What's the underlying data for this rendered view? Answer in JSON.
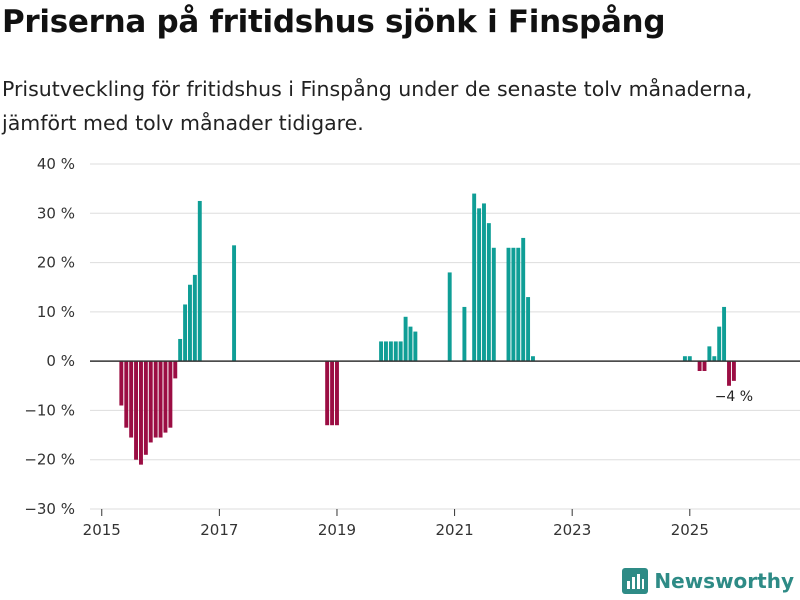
{
  "title": "Priserna på fritidshus sjönk i Finspång",
  "subtitle": "Prisutveckling för fritidshus i Finspång under de senaste tolv månaderna, jämfört med tolv månader tidigare.",
  "brand": {
    "name": "Newsworthy",
    "color": "#2e8b86"
  },
  "colors": {
    "positive": "#0f9e96",
    "negative": "#9b0d43",
    "grid": "#dddddd",
    "axis": "#333333"
  },
  "chart_data": {
    "type": "bar",
    "title": "Priserna på fritidshus sjönk i Finspång",
    "xlabel": "",
    "ylabel": "",
    "ylim": [
      -30,
      40
    ],
    "xlim": [
      2014.8,
      2026.5
    ],
    "y_ticks": [
      {
        "value": 40,
        "label": "40 %"
      },
      {
        "value": 30,
        "label": "30 %"
      },
      {
        "value": 20,
        "label": "20 %"
      },
      {
        "value": 10,
        "label": "10 %"
      },
      {
        "value": 0,
        "label": "0 %"
      },
      {
        "value": -10,
        "label": "−10 %"
      },
      {
        "value": -20,
        "label": "−20 %"
      },
      {
        "value": -30,
        "label": "−30 %"
      }
    ],
    "x_ticks": [
      {
        "value": 2015,
        "label": "2015"
      },
      {
        "value": 2017,
        "label": "2017"
      },
      {
        "value": 2019,
        "label": "2019"
      },
      {
        "value": 2021,
        "label": "2021"
      },
      {
        "value": 2023,
        "label": "2023"
      },
      {
        "value": 2025,
        "label": "2025"
      }
    ],
    "series": [
      {
        "name": "Prisutveckling",
        "points": [
          {
            "x": 2015.333,
            "y": -9
          },
          {
            "x": 2015.417,
            "y": -13.5
          },
          {
            "x": 2015.5,
            "y": -15.5
          },
          {
            "x": 2015.583,
            "y": -20
          },
          {
            "x": 2015.667,
            "y": -21
          },
          {
            "x": 2015.75,
            "y": -19
          },
          {
            "x": 2015.833,
            "y": -16.5
          },
          {
            "x": 2015.917,
            "y": -15.5
          },
          {
            "x": 2016.0,
            "y": -15.5
          },
          {
            "x": 2016.083,
            "y": -14.5
          },
          {
            "x": 2016.167,
            "y": -13.5
          },
          {
            "x": 2016.25,
            "y": -3.5
          },
          {
            "x": 2016.333,
            "y": 4.5
          },
          {
            "x": 2016.417,
            "y": 11.5
          },
          {
            "x": 2016.5,
            "y": 15.5
          },
          {
            "x": 2016.583,
            "y": 17.5
          },
          {
            "x": 2016.667,
            "y": 32.5
          },
          {
            "x": 2017.25,
            "y": 23.5
          },
          {
            "x": 2018.833,
            "y": -13
          },
          {
            "x": 2018.917,
            "y": -13
          },
          {
            "x": 2019.0,
            "y": -13
          },
          {
            "x": 2019.75,
            "y": 4
          },
          {
            "x": 2019.833,
            "y": 4
          },
          {
            "x": 2019.917,
            "y": 4
          },
          {
            "x": 2020.0,
            "y": 4
          },
          {
            "x": 2020.083,
            "y": 4
          },
          {
            "x": 2020.167,
            "y": 9
          },
          {
            "x": 2020.25,
            "y": 7
          },
          {
            "x": 2020.333,
            "y": 6
          },
          {
            "x": 2020.917,
            "y": 18
          },
          {
            "x": 2021.167,
            "y": 11
          },
          {
            "x": 2021.333,
            "y": 34
          },
          {
            "x": 2021.417,
            "y": 31
          },
          {
            "x": 2021.5,
            "y": 32
          },
          {
            "x": 2021.583,
            "y": 28
          },
          {
            "x": 2021.667,
            "y": 23
          },
          {
            "x": 2021.917,
            "y": 23
          },
          {
            "x": 2022.0,
            "y": 23
          },
          {
            "x": 2022.083,
            "y": 23
          },
          {
            "x": 2022.167,
            "y": 25
          },
          {
            "x": 2022.25,
            "y": 13
          },
          {
            "x": 2022.333,
            "y": 1
          },
          {
            "x": 2024.917,
            "y": 1
          },
          {
            "x": 2025.0,
            "y": 1
          },
          {
            "x": 2025.167,
            "y": -2
          },
          {
            "x": 2025.25,
            "y": -2
          },
          {
            "x": 2025.333,
            "y": 3
          },
          {
            "x": 2025.417,
            "y": 1
          },
          {
            "x": 2025.5,
            "y": 7
          },
          {
            "x": 2025.583,
            "y": 11
          },
          {
            "x": 2025.667,
            "y": -5
          },
          {
            "x": 2025.75,
            "y": -4
          }
        ]
      }
    ],
    "annotations": [
      {
        "text": "−4 %",
        "x": 2025.75,
        "y": -4
      }
    ]
  }
}
